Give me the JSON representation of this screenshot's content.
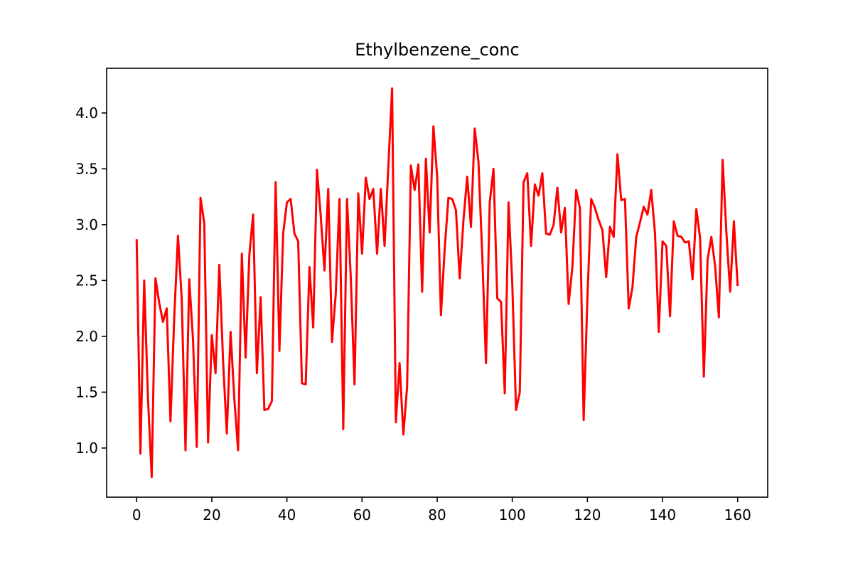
{
  "chart_data": {
    "type": "line",
    "title": "Ethylbenzene_conc",
    "xlabel": "",
    "ylabel": "",
    "xlim": [
      -8,
      168
    ],
    "ylim": [
      0.56,
      4.4
    ],
    "xticks": [
      0,
      20,
      40,
      60,
      80,
      100,
      120,
      140,
      160
    ],
    "yticks": [
      1.0,
      1.5,
      2.0,
      2.5,
      3.0,
      3.5,
      4.0
    ],
    "grid": false,
    "legend": "none",
    "series": [
      {
        "color": "#ff0000",
        "x": [
          0,
          1,
          2,
          3,
          4,
          5,
          6,
          7,
          8,
          9,
          10,
          11,
          12,
          13,
          14,
          15,
          16,
          17,
          18,
          19,
          20,
          21,
          22,
          23,
          24,
          25,
          26,
          27,
          28,
          29,
          30,
          31,
          32,
          33,
          34,
          35,
          36,
          37,
          38,
          39,
          40,
          41,
          42,
          43,
          44,
          45,
          46,
          47,
          48,
          49,
          50,
          51,
          52,
          53,
          54,
          55,
          56,
          57,
          58,
          59,
          60,
          61,
          62,
          63,
          64,
          65,
          66,
          67,
          68,
          69,
          70,
          71,
          72,
          73,
          74,
          75,
          76,
          77,
          78,
          79,
          80,
          81,
          82,
          83,
          84,
          85,
          86,
          87,
          88,
          89,
          90,
          91,
          92,
          93,
          94,
          95,
          96,
          97,
          98,
          99,
          100,
          101,
          102,
          103,
          104,
          105,
          106,
          107,
          108,
          109,
          110,
          111,
          112,
          113,
          114,
          115,
          116,
          117,
          118,
          119,
          120,
          121,
          122,
          123,
          124,
          125,
          126,
          127,
          128,
          129,
          130,
          131,
          132,
          133,
          134,
          135,
          136,
          137,
          138,
          139,
          140,
          141,
          142,
          143,
          144,
          145,
          146,
          147,
          148,
          149,
          150,
          151,
          152,
          153,
          154,
          155,
          156,
          157,
          158,
          159,
          160
        ],
        "y": [
          2.87,
          0.95,
          2.5,
          1.45,
          0.74,
          2.52,
          2.3,
          2.13,
          2.25,
          1.24,
          2.17,
          2.9,
          2.33,
          0.98,
          2.51,
          1.97,
          1.01,
          3.24,
          3.01,
          1.05,
          2.01,
          1.67,
          2.64,
          1.78,
          1.13,
          2.04,
          1.44,
          0.98,
          2.74,
          1.81,
          2.73,
          3.09,
          1.67,
          2.35,
          1.34,
          1.35,
          1.42,
          3.38,
          1.87,
          2.92,
          3.2,
          3.23,
          2.92,
          2.85,
          1.58,
          1.57,
          2.62,
          2.08,
          3.49,
          3.08,
          2.59,
          3.32,
          1.95,
          2.38,
          3.23,
          1.17,
          3.23,
          2.53,
          1.57,
          3.28,
          2.74,
          3.42,
          3.23,
          3.32,
          2.74,
          3.32,
          2.81,
          3.52,
          4.22,
          1.23,
          1.76,
          1.12,
          1.55,
          3.53,
          3.31,
          3.54,
          2.4,
          3.59,
          2.93,
          3.88,
          3.43,
          2.19,
          2.78,
          3.24,
          3.23,
          3.13,
          2.52,
          3.04,
          3.43,
          2.98,
          3.86,
          3.56,
          2.73,
          1.76,
          3.2,
          3.5,
          2.34,
          2.31,
          1.49,
          3.2,
          2.47,
          1.34,
          1.5,
          3.38,
          3.46,
          2.81,
          3.36,
          3.26,
          3.46,
          2.92,
          2.91,
          3.0,
          3.33,
          2.93,
          3.15,
          2.29,
          2.62,
          3.31,
          3.15,
          1.25,
          2.34,
          3.23,
          3.15,
          3.04,
          2.95,
          2.53,
          2.98,
          2.89,
          3.63,
          3.22,
          3.23,
          2.25,
          2.44,
          2.89,
          3.02,
          3.16,
          3.09,
          3.31,
          2.92,
          2.04,
          2.85,
          2.81,
          2.18,
          3.03,
          2.9,
          2.89,
          2.84,
          2.85,
          2.51,
          3.14,
          2.88,
          1.64,
          2.69,
          2.89,
          2.63,
          2.17,
          3.58,
          2.93,
          2.4,
          3.03,
          2.45
        ]
      }
    ]
  }
}
